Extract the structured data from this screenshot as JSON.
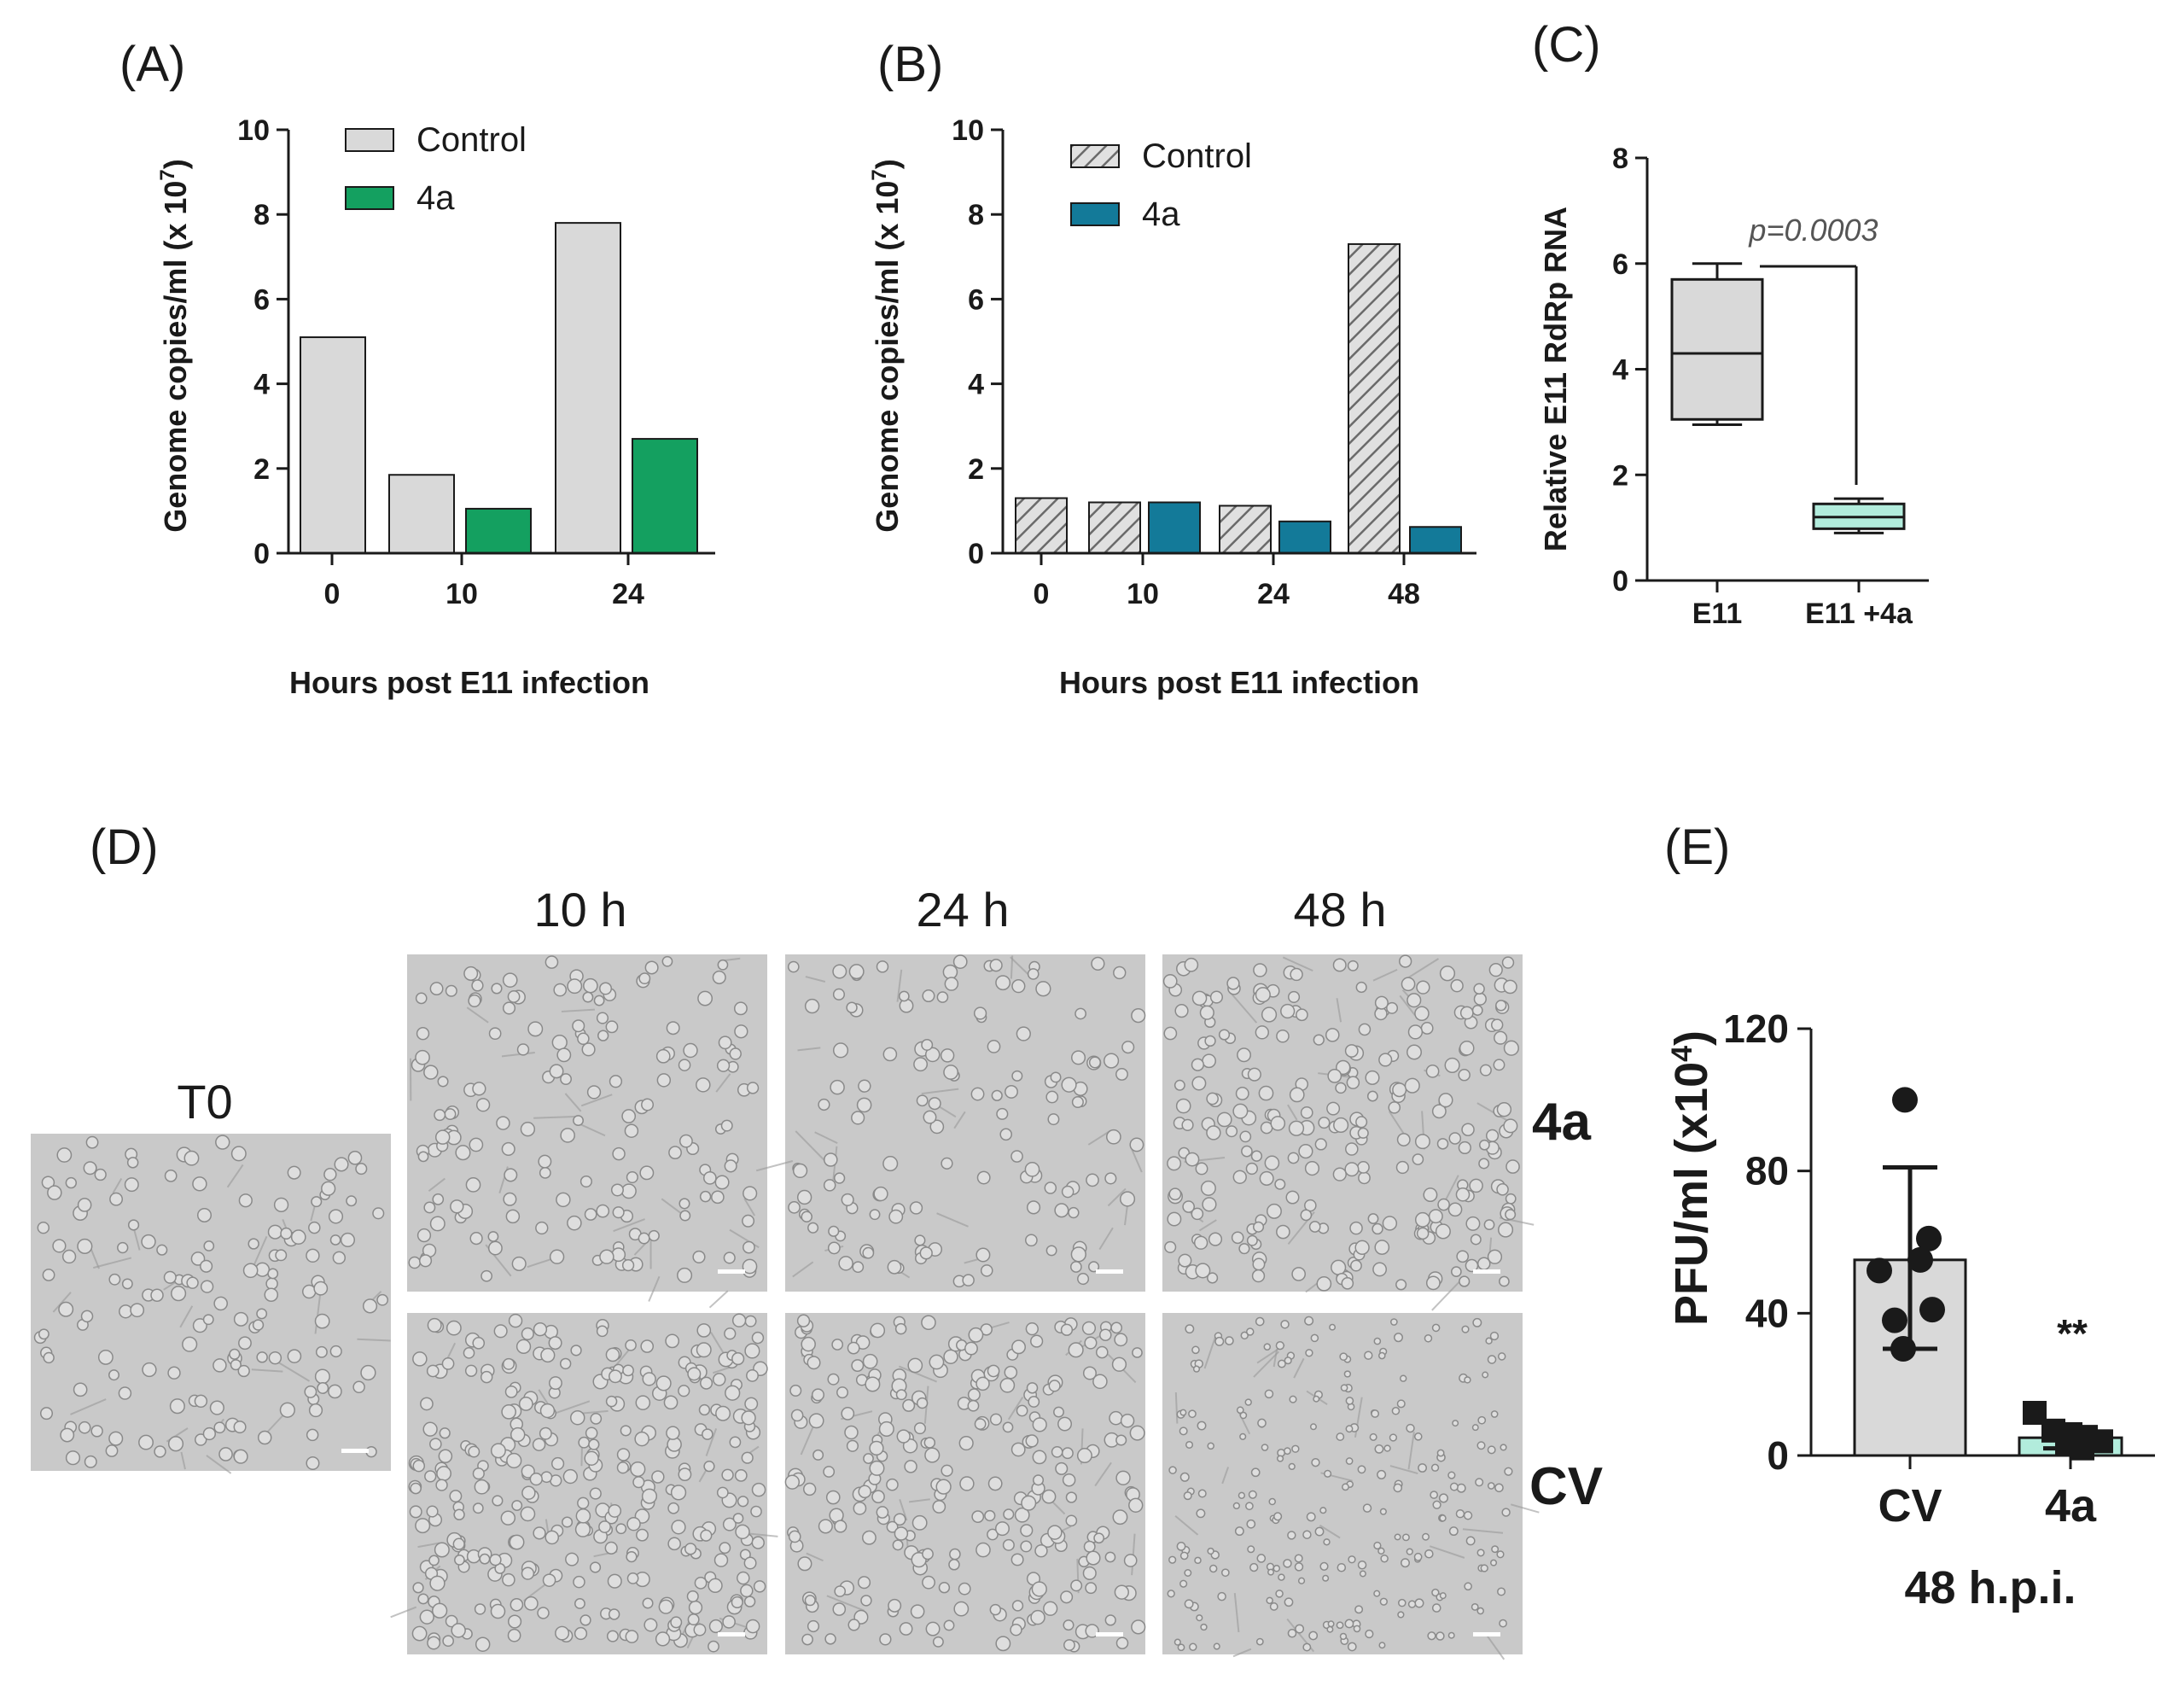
{
  "colors": {
    "control_gray": "#d9d9d9",
    "green": "#14a060",
    "teal": "#137a99",
    "mint": "#b2ecdc",
    "axis": "#1a1a1a",
    "micro_bg": "#c9c9c9"
  },
  "chart_data": [
    {
      "panel": "(A)",
      "type": "bar",
      "categories": [
        "0",
        "10",
        "24"
      ],
      "series": [
        {
          "name": "Control",
          "values": [
            5.1,
            1.85,
            7.8
          ]
        },
        {
          "name": "4a",
          "values": [
            null,
            1.05,
            2.7
          ]
        }
      ],
      "ylabel": "Genome copies/ml (x 10",
      "ylabel_exp": "7",
      "ylabel_close": ")",
      "xlabel": "Hours post E11 infection",
      "ylim": [
        0,
        10
      ],
      "yticks": [
        "0",
        "2",
        "4",
        "6",
        "8",
        "10"
      ],
      "legend": [
        "Control",
        "4a"
      ]
    },
    {
      "panel": "(B)",
      "type": "bar",
      "categories": [
        "0",
        "10",
        "24",
        "48"
      ],
      "series": [
        {
          "name": "Control",
          "values": [
            1.3,
            1.2,
            1.12,
            7.3
          ]
        },
        {
          "name": "4a",
          "values": [
            null,
            1.2,
            0.75,
            0.62
          ]
        }
      ],
      "ylabel": "Genome copies/ml (x 10",
      "ylabel_exp": "7",
      "ylabel_close": ")",
      "xlabel": "Hours post E11 infection",
      "ylim": [
        0,
        10
      ],
      "yticks": [
        "0",
        "2",
        "4",
        "6",
        "8",
        "10"
      ],
      "legend": [
        "Control",
        "4a"
      ]
    },
    {
      "panel": "(C)",
      "type": "box",
      "categories": [
        "E11",
        "E11 +4a"
      ],
      "boxes": [
        {
          "min": 2.95,
          "q1": 3.05,
          "median": 4.3,
          "q3": 5.7,
          "max": 6.0
        },
        {
          "min": 0.9,
          "q1": 0.98,
          "median": 1.2,
          "q3": 1.45,
          "max": 1.55
        }
      ],
      "ylabel": "Relative E11 RdRp RNA",
      "ylim": [
        0,
        8
      ],
      "yticks": [
        "0",
        "2",
        "4",
        "6",
        "8"
      ],
      "annotation": "p=0.0003"
    },
    {
      "panel": "(E)",
      "type": "bar",
      "categories": [
        "CV",
        "4a"
      ],
      "values": [
        55,
        5
      ],
      "errors": [
        [
          30,
          81
        ],
        [
          2,
          8
        ]
      ],
      "points": [
        [
          100,
          61,
          55,
          52,
          41,
          38,
          30
        ],
        [
          12,
          7,
          6,
          5,
          4,
          3,
          2
        ]
      ],
      "ylabel": "PFU/ml (x10",
      "ylabel_exp": "4",
      "ylabel_close": ")",
      "xlabel": "48 h.p.i.",
      "ylim": [
        0,
        120
      ],
      "yticks": [
        "0",
        "40",
        "80",
        "120"
      ],
      "significance": "**"
    }
  ],
  "panel_d": {
    "label": "(D)",
    "t0_label": "T0",
    "time_labels": [
      "10 h",
      "24 h",
      "48 h"
    ],
    "row_labels": [
      "4a",
      "CV"
    ]
  }
}
